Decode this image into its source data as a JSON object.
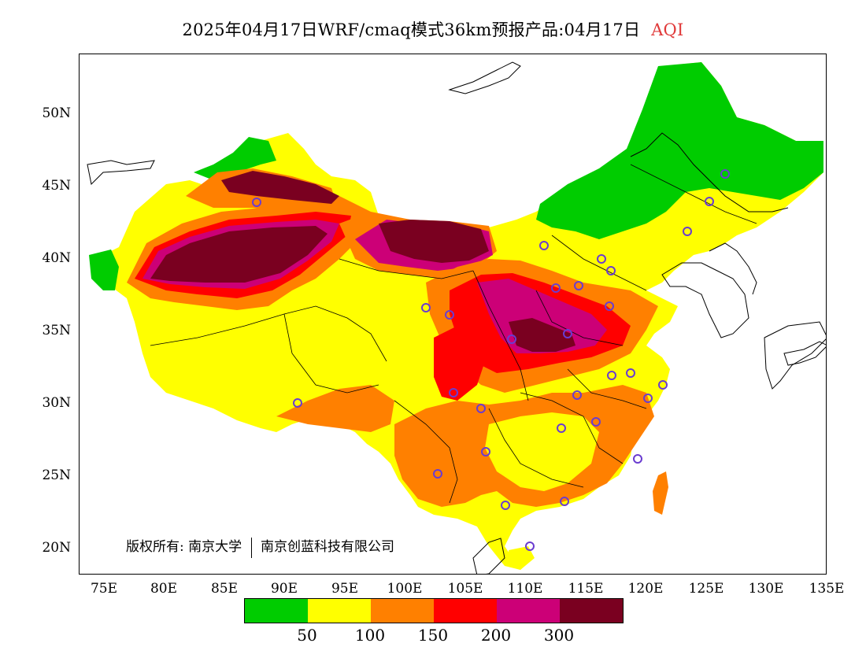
{
  "header": {
    "title": "2025年04月17日WRF/cmaq模式36km预报产品:04月17日",
    "variable": "AQI"
  },
  "map": {
    "lon_ticks": [
      "75E",
      "80E",
      "85E",
      "90E",
      "95E",
      "100E",
      "105E",
      "110E",
      "115E",
      "120E",
      "125E",
      "130E",
      "135E"
    ],
    "lat_ticks": [
      "50N",
      "45N",
      "40N",
      "35N",
      "30N",
      "25N",
      "20N"
    ]
  },
  "copyright": {
    "label": "版权所有:",
    "org1": "南京大学",
    "org2": "南京创蓝科技有限公司"
  },
  "legend": {
    "colors": [
      "#00cc00",
      "#ffff00",
      "#ff8000",
      "#ff0000",
      "#cc0077",
      "#7a0020"
    ],
    "labels": [
      "50",
      "100",
      "150",
      "200",
      "300"
    ]
  },
  "colors": {
    "good": "#00cc00",
    "moderate": "#ffff00",
    "sensitive": "#ff8000",
    "unhealthy": "#ff0000",
    "very_unhealthy": "#cc0077",
    "hazardous": "#7a0020",
    "station_marker": "#6a3cd0"
  }
}
